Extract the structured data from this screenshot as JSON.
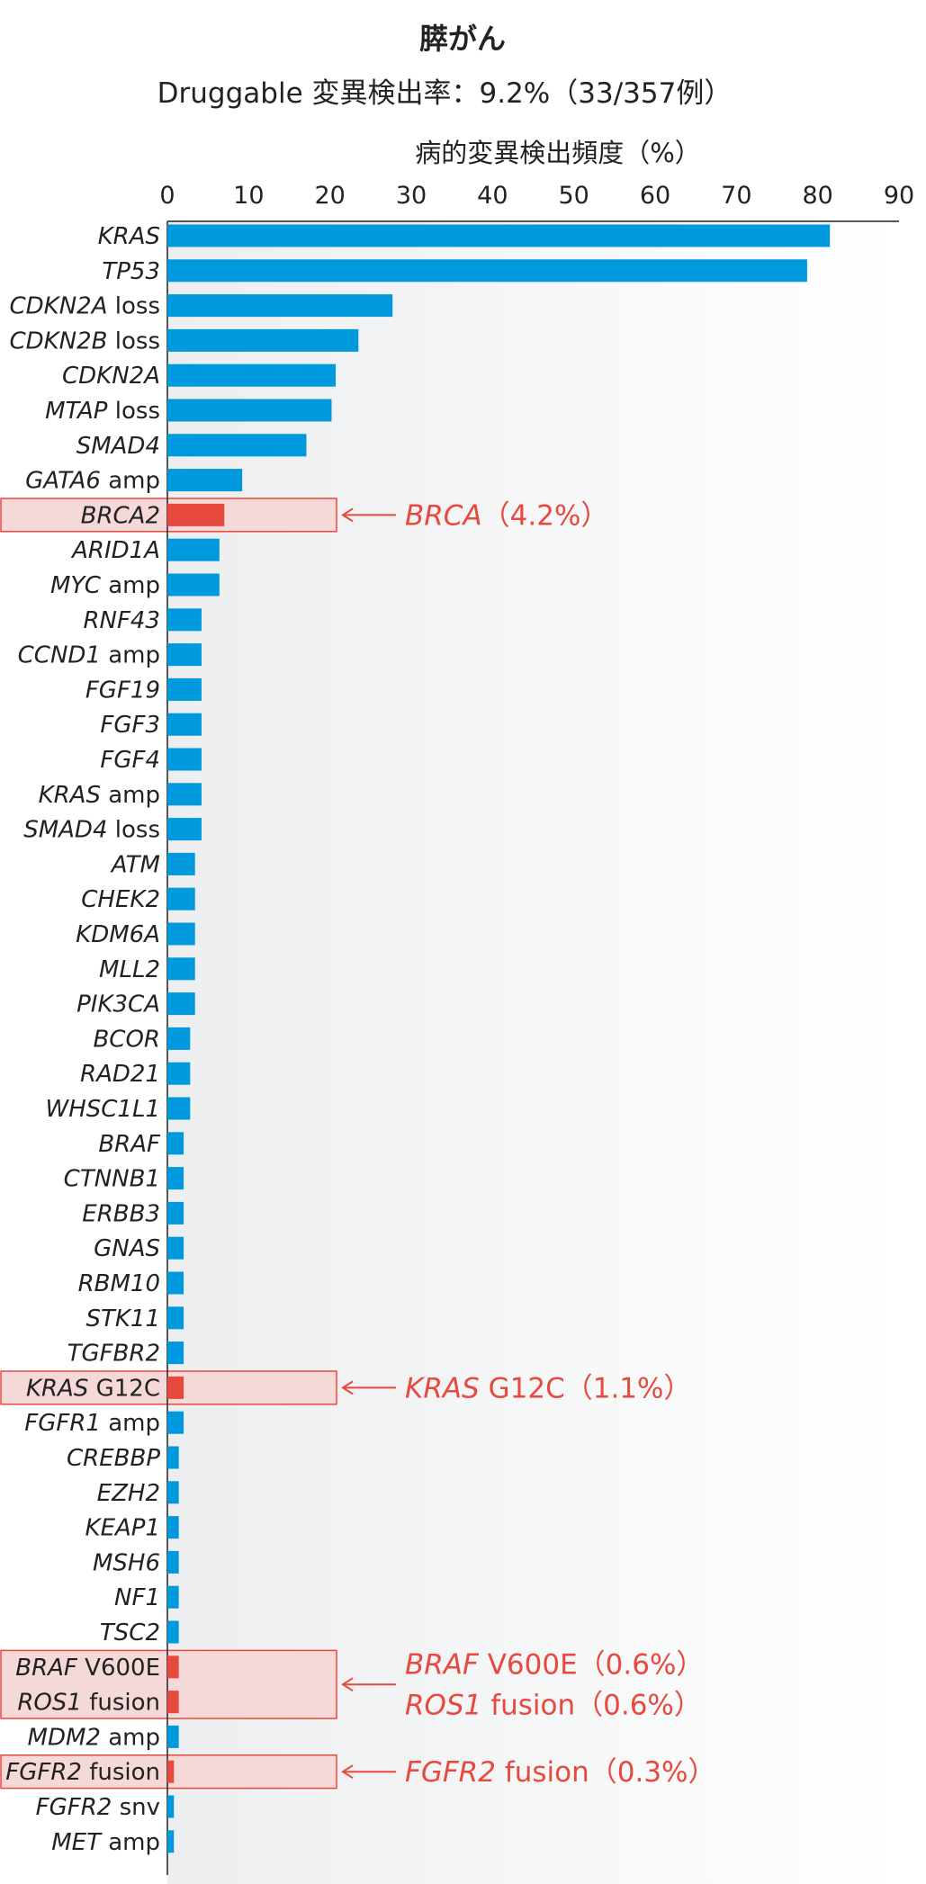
{
  "chart_data": {
    "type": "bar",
    "orientation": "horizontal",
    "title": "膵がん",
    "subtitle": "Druggable 変異検出率：9.2%（33/357例）",
    "xlabel": "病的変異検出頻度（%）",
    "xlim": [
      0,
      90
    ],
    "xticks": [
      "0",
      "10",
      "20",
      "30",
      "40",
      "50",
      "60",
      "70",
      "80",
      "90"
    ],
    "categories": [
      {
        "gene": "KRAS",
        "suffix": ""
      },
      {
        "gene": "TP53",
        "suffix": ""
      },
      {
        "gene": "CDKN2A",
        "suffix": " loss"
      },
      {
        "gene": "CDKN2B",
        "suffix": " loss"
      },
      {
        "gene": "CDKN2A",
        "suffix": ""
      },
      {
        "gene": "MTAP",
        "suffix": " loss"
      },
      {
        "gene": "SMAD4",
        "suffix": ""
      },
      {
        "gene": "GATA6",
        "suffix": " amp"
      },
      {
        "gene": "BRCA2",
        "suffix": ""
      },
      {
        "gene": "ARID1A",
        "suffix": ""
      },
      {
        "gene": "MYC",
        "suffix": " amp"
      },
      {
        "gene": "RNF43",
        "suffix": ""
      },
      {
        "gene": "CCND1",
        "suffix": " amp"
      },
      {
        "gene": "FGF19",
        "suffix": ""
      },
      {
        "gene": "FGF3",
        "suffix": ""
      },
      {
        "gene": "FGF4",
        "suffix": ""
      },
      {
        "gene": "KRAS",
        "suffix": " amp"
      },
      {
        "gene": "SMAD4",
        "suffix": " loss"
      },
      {
        "gene": "ATM",
        "suffix": ""
      },
      {
        "gene": "CHEK2",
        "suffix": ""
      },
      {
        "gene": "KDM6A",
        "suffix": ""
      },
      {
        "gene": "MLL2",
        "suffix": ""
      },
      {
        "gene": "PIK3CA",
        "suffix": ""
      },
      {
        "gene": "BCOR",
        "suffix": ""
      },
      {
        "gene": "RAD21",
        "suffix": ""
      },
      {
        "gene": "WHSC1L1",
        "suffix": ""
      },
      {
        "gene": "BRAF",
        "suffix": ""
      },
      {
        "gene": "CTNNB1",
        "suffix": ""
      },
      {
        "gene": "ERBB3",
        "suffix": ""
      },
      {
        "gene": "GNAS",
        "suffix": ""
      },
      {
        "gene": "RBM10",
        "suffix": ""
      },
      {
        "gene": "STK11",
        "suffix": ""
      },
      {
        "gene": "TGFBR2",
        "suffix": ""
      },
      {
        "gene": "KRAS",
        "suffix": " G12C"
      },
      {
        "gene": "FGFR1",
        "suffix": " amp"
      },
      {
        "gene": "CREBBP",
        "suffix": ""
      },
      {
        "gene": "EZH2",
        "suffix": ""
      },
      {
        "gene": "KEAP1",
        "suffix": ""
      },
      {
        "gene": "MSH6",
        "suffix": ""
      },
      {
        "gene": "NF1",
        "suffix": ""
      },
      {
        "gene": "TSC2",
        "suffix": ""
      },
      {
        "gene": "BRAF",
        "suffix": " V600E"
      },
      {
        "gene": "ROS1",
        "suffix": " fusion"
      },
      {
        "gene": "MDM2",
        "suffix": " amp"
      },
      {
        "gene": "FGFR2",
        "suffix": " fusion"
      },
      {
        "gene": "FGFR2",
        "suffix": " snv"
      },
      {
        "gene": "MET",
        "suffix": " amp"
      }
    ],
    "values": [
      81.5,
      78.7,
      27.7,
      23.5,
      20.7,
      20.2,
      17.1,
      9.2,
      7.0,
      6.4,
      6.4,
      4.2,
      4.2,
      4.2,
      4.2,
      4.2,
      4.2,
      4.2,
      3.4,
      3.4,
      3.4,
      3.4,
      3.4,
      2.8,
      2.8,
      2.8,
      2.0,
      2.0,
      2.0,
      2.0,
      2.0,
      2.0,
      2.0,
      2.0,
      2.0,
      1.4,
      1.4,
      1.4,
      1.4,
      1.4,
      1.4,
      1.4,
      1.4,
      1.4,
      0.8,
      0.8,
      0.8
    ],
    "highlighted": [
      8,
      33,
      41,
      42,
      44
    ],
    "annotations": [
      {
        "rows": [
          8,
          8
        ],
        "lines": [
          {
            "gene": "BRCA",
            "rest": "（4.2%）"
          }
        ]
      },
      {
        "rows": [
          33,
          33
        ],
        "lines": [
          {
            "gene": "KRAS",
            "rest": " G12C（1.1%）"
          }
        ]
      },
      {
        "rows": [
          41,
          42
        ],
        "lines": [
          {
            "gene": "BRAF",
            "rest": " V600E（0.6%）"
          },
          {
            "gene": "ROS1",
            "rest": " fusion（0.6%）"
          }
        ]
      },
      {
        "rows": [
          44,
          44
        ],
        "lines": [
          {
            "gene": "FGFR2",
            "rest": " fusion（0.3%）"
          }
        ]
      }
    ],
    "colors": {
      "bar": "#0099dd",
      "highlight": "#e8493f",
      "highlight_box": "#f5d9d9",
      "highlight_border": "#e8493f",
      "axis": "#222222"
    }
  }
}
